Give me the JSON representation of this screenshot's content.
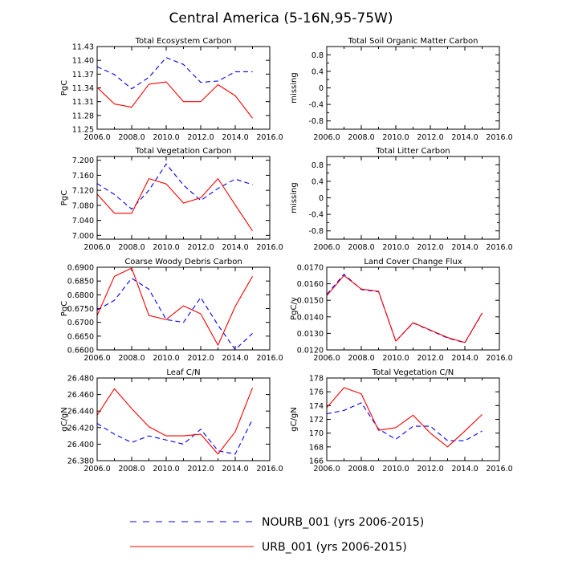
{
  "figure_title": "Central America (5-16N,95-75W)",
  "legend": {
    "entries": [
      {
        "label": "NOURB_001 (yrs 2006-2015)",
        "color": "#0000ff",
        "style": "dashed"
      },
      {
        "label": "URB_001 (yrs 2006-2015)",
        "color": "#ff0000",
        "style": "solid"
      }
    ]
  },
  "chart_data": [
    {
      "type": "line",
      "title": "Total Ecosystem Carbon",
      "ylabel": "PgC",
      "xlabel": "",
      "xlim": [
        2006,
        2016
      ],
      "ylim": [
        11.25,
        11.43
      ],
      "xticks": [
        "2006.0",
        "2008.0",
        "2010.0",
        "2012.0",
        "2014.0",
        "2016.0"
      ],
      "yticks": [
        "11.25",
        "11.28",
        "11.31",
        "11.34",
        "11.37",
        "11.40",
        "11.43"
      ],
      "x": [
        2006,
        2007,
        2008,
        2009,
        2010,
        2011,
        2012,
        2013,
        2014,
        2015
      ],
      "series": [
        {
          "name": "NOURB_001 (yrs 2006-2015)",
          "color": "#0000ff",
          "style": "dashed",
          "values": [
            11.386,
            11.369,
            11.338,
            11.363,
            11.406,
            11.391,
            11.352,
            11.355,
            11.375,
            11.375
          ]
        },
        {
          "name": "URB_001 (yrs 2006-2015)",
          "color": "#ff0000",
          "style": "solid",
          "values": [
            11.341,
            11.305,
            11.298,
            11.348,
            11.353,
            11.31,
            11.31,
            11.347,
            11.323,
            11.274
          ]
        }
      ]
    },
    {
      "type": "line",
      "title": "Total Soil Organic Matter Carbon",
      "ylabel": "missing",
      "xlabel": "",
      "xlim": [
        2006,
        2016
      ],
      "ylim": [
        -1.0,
        1.0
      ],
      "xticks": [
        "2006.0",
        "2008.0",
        "2010.0",
        "2012.0",
        "2014.0",
        "2016.0"
      ],
      "yticks": [
        "-0.8",
        "-0.4",
        "0",
        "0.4",
        "0.8"
      ],
      "ytick_values": [
        -0.8,
        -0.4,
        0,
        0.4,
        0.8
      ],
      "yminor": [
        -0.6,
        -0.2,
        0.2,
        0.6
      ],
      "x": [],
      "series": []
    },
    {
      "type": "line",
      "title": "Total Vegetation Carbon",
      "ylabel": "PgC",
      "xlabel": "",
      "xlim": [
        2006,
        2016
      ],
      "ylim": [
        6.99,
        7.21
      ],
      "xticks": [
        "2006.0",
        "2008.0",
        "2010.0",
        "2012.0",
        "2014.0",
        "2016.0"
      ],
      "yticks": [
        "7.000",
        "7.040",
        "7.080",
        "7.120",
        "7.160",
        "7.200"
      ],
      "x": [
        2006,
        2007,
        2008,
        2009,
        2010,
        2011,
        2012,
        2013,
        2014,
        2015
      ],
      "series": [
        {
          "name": "NOURB_001 (yrs 2006-2015)",
          "color": "#0000ff",
          "style": "dashed",
          "values": [
            7.138,
            7.109,
            7.07,
            7.12,
            7.19,
            7.134,
            7.093,
            7.125,
            7.15,
            7.135
          ]
        },
        {
          "name": "URB_001 (yrs 2006-2015)",
          "color": "#ff0000",
          "style": "solid",
          "values": [
            7.11,
            7.059,
            7.059,
            7.151,
            7.137,
            7.086,
            7.1,
            7.151,
            7.081,
            7.012
          ]
        }
      ]
    },
    {
      "type": "line",
      "title": "Total Litter Carbon",
      "ylabel": "missing",
      "xlabel": "",
      "xlim": [
        2006,
        2016
      ],
      "ylim": [
        -1.0,
        1.0
      ],
      "xticks": [
        "2006.0",
        "2008.0",
        "2010.0",
        "2012.0",
        "2014.0",
        "2016.0"
      ],
      "yticks": [
        "-0.8",
        "-0.4",
        "0",
        "0.4",
        "0.8"
      ],
      "ytick_values": [
        -0.8,
        -0.4,
        0,
        0.4,
        0.8
      ],
      "yminor": [
        -0.6,
        -0.2,
        0.2,
        0.6
      ],
      "x": [],
      "series": []
    },
    {
      "type": "line",
      "title": "Coarse Woody Debris Carbon",
      "ylabel": "PgC",
      "xlabel": "",
      "xlim": [
        2006,
        2016
      ],
      "ylim": [
        0.66,
        0.69
      ],
      "xticks": [
        "2006.0",
        "2008.0",
        "2010.0",
        "2012.0",
        "2014.0",
        "2016.0"
      ],
      "yticks": [
        "0.6600",
        "0.6650",
        "0.6700",
        "0.6750",
        "0.6800",
        "0.6850",
        "0.6900"
      ],
      "x": [
        2006,
        2007,
        2008,
        2009,
        2010,
        2011,
        2012,
        2013,
        2014,
        2015
      ],
      "series": [
        {
          "name": "NOURB_001 (yrs 2006-2015)",
          "color": "#0000ff",
          "style": "dashed",
          "values": [
            0.6745,
            0.678,
            0.686,
            0.682,
            0.671,
            0.67,
            0.679,
            0.669,
            0.6601,
            0.666
          ]
        },
        {
          "name": "URB_001 (yrs 2006-2015)",
          "color": "#ff0000",
          "style": "solid",
          "values": [
            0.6725,
            0.6867,
            0.6897,
            0.6725,
            0.671,
            0.676,
            0.6731,
            0.6617,
            0.6758,
            0.6867
          ]
        }
      ]
    },
    {
      "type": "line",
      "title": "Land Cover Change Flux",
      "ylabel": "PgC/y",
      "xlabel": "",
      "xlim": [
        2006,
        2016
      ],
      "ylim": [
        0.012,
        0.017
      ],
      "xticks": [
        "2006.0",
        "2008.0",
        "2010.0",
        "2012.0",
        "2014.0",
        "2016.0"
      ],
      "yticks": [
        "0.0120",
        "0.0130",
        "0.0140",
        "0.0150",
        "0.0160",
        "0.0170"
      ],
      "x": [
        2006,
        2007,
        2008,
        2009,
        2010,
        2011,
        2012,
        2013,
        2014,
        2015
      ],
      "series": [
        {
          "name": "NOURB_001 (yrs 2006-2015)",
          "color": "#0000ff",
          "style": "dashed",
          "values": [
            0.01535,
            0.01658,
            0.01565,
            0.01552,
            0.01253,
            0.01363,
            0.01318,
            0.01272,
            0.01243,
            0.0142
          ]
        },
        {
          "name": "URB_001 (yrs 2006-2015)",
          "color": "#ff0000",
          "style": "solid",
          "values": [
            0.01528,
            0.0165,
            0.01568,
            0.01555,
            0.01253,
            0.01365,
            0.0132,
            0.01275,
            0.01245,
            0.01423
          ]
        }
      ]
    },
    {
      "type": "line",
      "title": "Leaf C/N",
      "ylabel": "gC/gN",
      "xlabel": "",
      "xlim": [
        2006,
        2016
      ],
      "ylim": [
        26.38,
        26.48
      ],
      "xticks": [
        "2006.0",
        "2008.0",
        "2010.0",
        "2012.0",
        "2014.0",
        "2016.0"
      ],
      "yticks": [
        "26.380",
        "26.400",
        "26.420",
        "26.440",
        "26.460",
        "26.480"
      ],
      "x": [
        2006,
        2007,
        2008,
        2009,
        2010,
        2011,
        2012,
        2013,
        2014,
        2015
      ],
      "series": [
        {
          "name": "NOURB_001 (yrs 2006-2015)",
          "color": "#0000ff",
          "style": "dashed",
          "values": [
            26.425,
            26.412,
            26.402,
            26.41,
            26.405,
            26.4,
            26.418,
            26.392,
            26.388,
            26.43
          ]
        },
        {
          "name": "URB_001 (yrs 2006-2015)",
          "color": "#ff0000",
          "style": "solid",
          "values": [
            26.435,
            26.467,
            26.443,
            26.421,
            26.41,
            26.41,
            26.412,
            26.388,
            26.415,
            26.468
          ]
        }
      ]
    },
    {
      "type": "line",
      "title": "Total Vegetation C/N",
      "ylabel": "gC/gN",
      "xlabel": "",
      "xlim": [
        2006,
        2016
      ],
      "ylim": [
        166,
        178
      ],
      "xticks": [
        "2006.0",
        "2008.0",
        "2010.0",
        "2012.0",
        "2014.0",
        "2016.0"
      ],
      "yticks": [
        "166",
        "168",
        "170",
        "172",
        "174",
        "176",
        "178"
      ],
      "x": [
        2006,
        2007,
        2008,
        2009,
        2010,
        2011,
        2012,
        2013,
        2014,
        2015
      ],
      "series": [
        {
          "name": "NOURB_001 (yrs 2006-2015)",
          "color": "#0000ff",
          "style": "dashed",
          "values": [
            172.8,
            173.3,
            174.4,
            170.6,
            169.1,
            171.0,
            171.0,
            168.9,
            168.9,
            170.3
          ]
        },
        {
          "name": "URB_001 (yrs 2006-2015)",
          "color": "#ff0000",
          "style": "solid",
          "values": [
            173.7,
            176.6,
            175.7,
            170.4,
            170.8,
            172.6,
            170.0,
            168.0,
            170.3,
            172.7
          ]
        }
      ]
    }
  ]
}
